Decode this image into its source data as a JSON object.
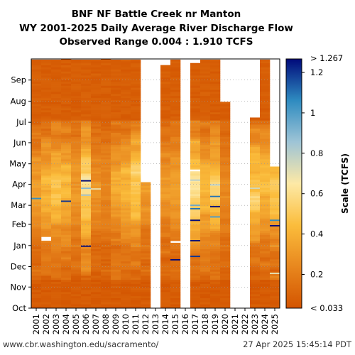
{
  "chart_data": {
    "type": "heatmap",
    "title": [
      "BNF NF Battle Creek nr Manton",
      "WY 2001-2025 Daily Average River Discharge Flow",
      "Observed Range 0.004 : 1.910 TCFS"
    ],
    "x_tick_labels": [
      "2001",
      "2002",
      "2003",
      "2004",
      "2005",
      "2006",
      "2007",
      "2008",
      "2009",
      "2010",
      "2011",
      "2012",
      "2013",
      "2014",
      "2015",
      "2016",
      "2017",
      "2018",
      "2019",
      "2020",
      "2021",
      "2022",
      "2023",
      "2024",
      "2025"
    ],
    "y_tick_labels": [
      "Oct",
      "Nov",
      "Dec",
      "Jan",
      "Feb",
      "Mar",
      "Apr",
      "May",
      "Jun",
      "Jul",
      "Aug",
      "Sep"
    ],
    "colorbar": {
      "label": "Scale (TCFS)",
      "top_label": "> 1.267",
      "bottom_label": "< 0.033",
      "tick_labels": [
        "1.2",
        "1",
        "0.8",
        "0.6",
        "0.4",
        "0.2"
      ],
      "tick_values": [
        1.2,
        1.0,
        0.8,
        0.6,
        0.4,
        0.2
      ],
      "min": 0.033,
      "max": 1.267,
      "color_stops": [
        "#d35400",
        "#e8871e",
        "#fbbd3c",
        "#fde9a6",
        "#9ec4d6",
        "#2e8bc0",
        "#000a7a"
      ]
    },
    "records_by_year": {
      "2001": {
        "start_day": 0,
        "end_day": 365
      },
      "2002": {
        "start_day": 0,
        "end_day": 365
      },
      "2003": {
        "start_day": 0,
        "end_day": 365
      },
      "2004": {
        "start_day": 0,
        "end_day": 366
      },
      "2005": {
        "start_day": 0,
        "end_day": 365
      },
      "2006": {
        "start_day": 0,
        "end_day": 365
      },
      "2007": {
        "start_day": 0,
        "end_day": 365
      },
      "2008": {
        "start_day": 0,
        "end_day": 366
      },
      "2009": {
        "start_day": 0,
        "end_day": 365
      },
      "2010": {
        "start_day": 0,
        "end_day": 365
      },
      "2011": {
        "start_day": 0,
        "end_day": 365
      },
      "2012": {
        "start_day": 0,
        "end_day": 185
      },
      "2013": {
        "start_day": 0,
        "end_day": 0
      },
      "2014": {
        "start_day": 0,
        "end_day": 357
      },
      "2015": {
        "start_day": 0,
        "end_day": 365
      },
      "2016": {
        "start_day": 0,
        "end_day": 0
      },
      "2017": {
        "start_day": 0,
        "end_day": 360
      },
      "2018": {
        "start_day": 0,
        "end_day": 365
      },
      "2019": {
        "start_day": 0,
        "end_day": 365
      },
      "2020": {
        "start_day": 0,
        "end_day": 303
      },
      "2021": {
        "start_day": 0,
        "end_day": 0
      },
      "2022": {
        "start_day": 0,
        "end_day": 0
      },
      "2023": {
        "start_day": 0,
        "end_day": 280
      },
      "2024": {
        "start_day": 0,
        "end_day": 365
      },
      "2025": {
        "start_day": 0,
        "end_day": 208
      }
    },
    "gaps_by_year": {
      "2002": [
        [
          98,
          104
        ]
      ],
      "2015": [
        [
          94,
          99
        ]
      ],
      "2017": [
        [
          200,
          203
        ]
      ]
    },
    "peak_events": [
      {
        "year": "2001",
        "day": 160,
        "value": 1.05
      },
      {
        "year": "2004",
        "day": 156,
        "value": 1.2
      },
      {
        "year": "2006",
        "day": 90,
        "value": 1.3
      },
      {
        "year": "2006",
        "day": 186,
        "value": 1.3
      },
      {
        "year": "2006",
        "day": 175,
        "value": 0.9
      },
      {
        "year": "2006",
        "day": 165,
        "value": 0.85
      },
      {
        "year": "2007",
        "day": 174,
        "value": 0.7
      },
      {
        "year": "2015",
        "day": 70,
        "value": 1.3
      },
      {
        "year": "2017",
        "day": 98,
        "value": 1.3
      },
      {
        "year": "2017",
        "day": 128,
        "value": 1.3
      },
      {
        "year": "2017",
        "day": 145,
        "value": 1.1
      },
      {
        "year": "2017",
        "day": 150,
        "value": 0.95
      },
      {
        "year": "2017",
        "day": 75,
        "value": 1.2
      },
      {
        "year": "2019",
        "day": 148,
        "value": 1.3
      },
      {
        "year": "2019",
        "day": 163,
        "value": 1.1
      },
      {
        "year": "2019",
        "day": 133,
        "value": 1.0
      },
      {
        "year": "2019",
        "day": 180,
        "value": 0.8
      },
      {
        "year": "2017",
        "day": 187,
        "value": 0.8
      },
      {
        "year": "2023",
        "day": 175,
        "value": 0.75
      },
      {
        "year": "2025",
        "day": 120,
        "value": 1.3
      },
      {
        "year": "2025",
        "day": 128,
        "value": 1.05
      },
      {
        "year": "2025",
        "day": 50,
        "value": 0.7
      }
    ],
    "xlabel": "",
    "ylabel": ""
  },
  "footer": {
    "left": "www.cbr.washington.edu/sacramento/",
    "right": "27 Apr 2025 15:45:14 PDT"
  }
}
